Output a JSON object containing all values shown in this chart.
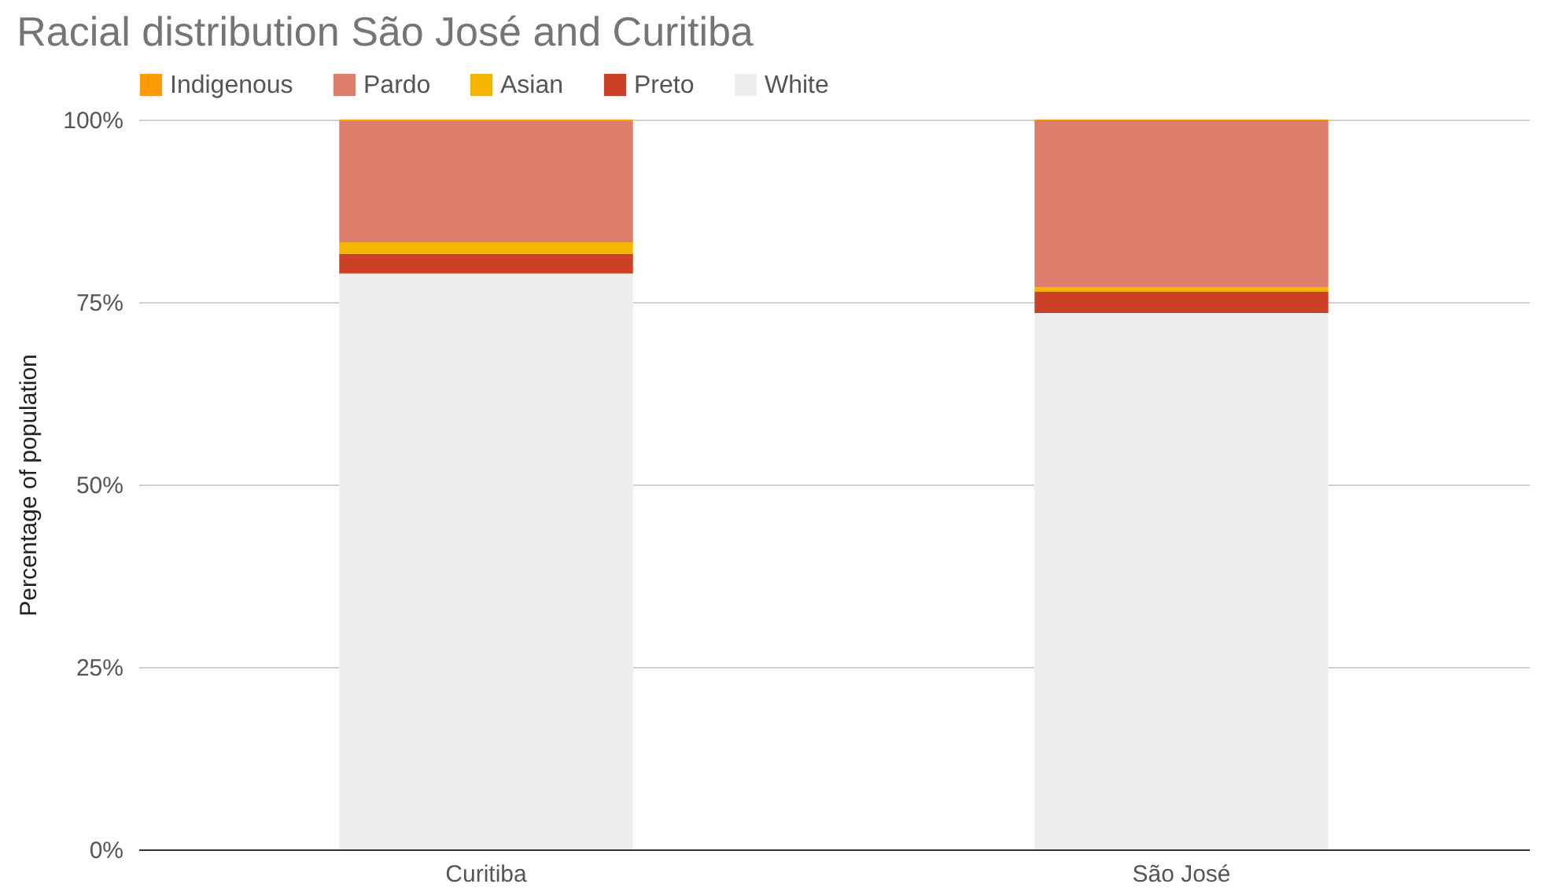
{
  "chart_data": {
    "type": "bar",
    "title": "Racial distribution São José and Curitiba",
    "ylabel": "Percentage of population",
    "categories": [
      "Curitiba",
      "São José"
    ],
    "stacked": true,
    "series": [
      {
        "name": "White",
        "color": "#eeeeee",
        "values": [
          78.9,
          73.5
        ]
      },
      {
        "name": "Preto",
        "color": "#cc4125",
        "values": [
          2.7,
          2.9
        ]
      },
      {
        "name": "Asian",
        "color": "#f6b400",
        "values": [
          1.6,
          0.6
        ]
      },
      {
        "name": "Pardo",
        "color": "#dd7e6b",
        "values": [
          16.6,
          22.9
        ]
      },
      {
        "name": "Indigenous",
        "color": "#ff9900",
        "values": [
          0.2,
          0.1
        ]
      }
    ],
    "ylim": [
      0,
      100
    ],
    "yticks": [
      {
        "value": 0,
        "label": "0%"
      },
      {
        "value": 25,
        "label": "25%"
      },
      {
        "value": 50,
        "label": "50%"
      },
      {
        "value": 75,
        "label": "75%"
      },
      {
        "value": 100,
        "label": "100%"
      }
    ],
    "grid": "y",
    "legend": "top"
  }
}
